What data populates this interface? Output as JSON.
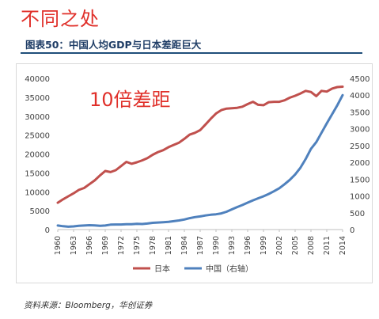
{
  "header": {
    "heading": "不同之处",
    "figure_title": "图表50：中国人均GDP与日本差距巨大",
    "source": "资料来源：Bloomberg，华创证券"
  },
  "chart_data": {
    "type": "line",
    "title": "",
    "annotation": "10倍差距",
    "categories": [
      1960,
      1961,
      1962,
      1963,
      1964,
      1965,
      1966,
      1967,
      1968,
      1969,
      1970,
      1971,
      1972,
      1973,
      1974,
      1975,
      1976,
      1977,
      1978,
      1979,
      1980,
      1981,
      1982,
      1983,
      1984,
      1985,
      1986,
      1987,
      1988,
      1989,
      1990,
      1991,
      1992,
      1993,
      1994,
      1995,
      1996,
      1997,
      1998,
      1999,
      2000,
      2001,
      2002,
      2003,
      2004,
      2005,
      2006,
      2007,
      2008,
      2009,
      2010,
      2011,
      2012,
      2013,
      2014
    ],
    "x_tick_labels": [
      "1960",
      "1963",
      "1966",
      "1969",
      "1972",
      "1975",
      "1978",
      "1981",
      "1984",
      "1987",
      "1990",
      "1993",
      "1996",
      "1999",
      "2002",
      "2005",
      "2008",
      "2011",
      "2014"
    ],
    "y_left": {
      "ylim": [
        0,
        40000
      ],
      "ticks": [
        "0",
        "5000",
        "10000",
        "15000",
        "20000",
        "25000",
        "30000",
        "35000",
        "40000"
      ]
    },
    "y_right": {
      "ylim": [
        0,
        4500
      ],
      "ticks": [
        "0",
        "500",
        "1000",
        "1500",
        "2000",
        "2500",
        "3000",
        "3500",
        "4000",
        "4500"
      ]
    },
    "series": [
      {
        "name": "日本",
        "axis": "left",
        "color": "#c0504d",
        "values": [
          7100,
          8000,
          8800,
          9600,
          10500,
          11000,
          12000,
          13000,
          14300,
          15500,
          15200,
          15700,
          16800,
          17900,
          17400,
          17800,
          18300,
          18900,
          19800,
          20500,
          21000,
          21800,
          22400,
          23000,
          24000,
          25100,
          25600,
          26300,
          27800,
          29300,
          30700,
          31600,
          32000,
          32100,
          32200,
          32500,
          33200,
          33800,
          33000,
          32900,
          33700,
          33800,
          33800,
          34200,
          34900,
          35400,
          36000,
          36700,
          36400,
          35300,
          36700,
          36500,
          37300,
          37700,
          37800
        ],
        "legend_label": "日本"
      },
      {
        "name": "中国（右轴）",
        "axis": "right",
        "color": "#4f81bd",
        "values": [
          120,
          100,
          85,
          95,
          110,
          120,
          130,
          125,
          110,
          120,
          145,
          150,
          150,
          160,
          160,
          170,
          165,
          180,
          200,
          210,
          220,
          230,
          250,
          270,
          300,
          340,
          370,
          390,
          420,
          440,
          455,
          480,
          530,
          600,
          670,
          730,
          800,
          870,
          930,
          990,
          1060,
          1140,
          1230,
          1350,
          1480,
          1640,
          1840,
          2100,
          2400,
          2600,
          2880,
          3160,
          3430,
          3700,
          4000
        ],
        "legend_label": "中国（右轴）"
      }
    ],
    "legend_position": "bottom",
    "grid": false
  }
}
